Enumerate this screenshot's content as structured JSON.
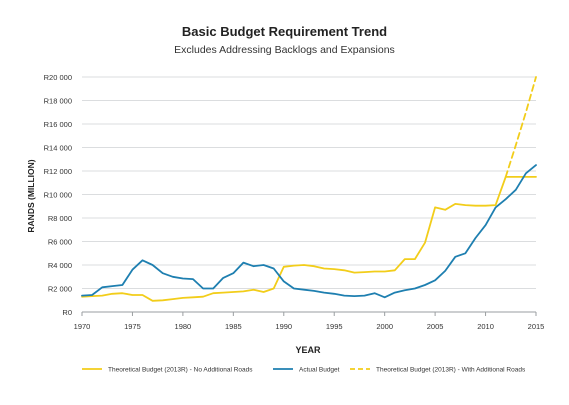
{
  "chart_data": {
    "type": "line",
    "title": "Basic Budget Requirement Trend",
    "subtitle": "Excludes Addressing Backlogs and Expansions",
    "xlabel": "YEAR",
    "ylabel": "RANDS (MILLION)",
    "xlim": [
      1970,
      2015
    ],
    "ylim": [
      0,
      20000
    ],
    "x_ticks": [
      "1970",
      "1975",
      "1980",
      "1985",
      "1990",
      "1995",
      "2000",
      "2005",
      "2010",
      "2015"
    ],
    "y_ticks": [
      "R0",
      "R2 000",
      "R4 000",
      "R6 000",
      "R8 000",
      "R10 000",
      "R12 000",
      "R14 000",
      "R16 000",
      "R18 000",
      "R20 000"
    ],
    "grid": "horizontal",
    "legend_position": "bottom",
    "series": [
      {
        "name": "Theoretical Budget (2013R) - No Additional Roads",
        "color": "#f2cd1a",
        "dash": "solid",
        "points": [
          [
            1970,
            1300
          ],
          [
            1971,
            1350
          ],
          [
            1972,
            1400
          ],
          [
            1973,
            1550
          ],
          [
            1974,
            1600
          ],
          [
            1975,
            1450
          ],
          [
            1976,
            1450
          ],
          [
            1977,
            950
          ],
          [
            1978,
            1000
          ],
          [
            1979,
            1100
          ],
          [
            1980,
            1200
          ],
          [
            1981,
            1250
          ],
          [
            1982,
            1300
          ],
          [
            1983,
            1600
          ],
          [
            1984,
            1650
          ],
          [
            1985,
            1700
          ],
          [
            1986,
            1750
          ],
          [
            1987,
            1900
          ],
          [
            1988,
            1700
          ],
          [
            1989,
            2000
          ],
          [
            1990,
            3850
          ],
          [
            1991,
            3950
          ],
          [
            1992,
            4000
          ],
          [
            1993,
            3900
          ],
          [
            1994,
            3700
          ],
          [
            1995,
            3650
          ],
          [
            1996,
            3550
          ],
          [
            1997,
            3350
          ],
          [
            1998,
            3400
          ],
          [
            1999,
            3450
          ],
          [
            2000,
            3450
          ],
          [
            2001,
            3550
          ],
          [
            2002,
            4500
          ],
          [
            2003,
            4500
          ],
          [
            2004,
            5900
          ],
          [
            2005,
            8900
          ],
          [
            2006,
            8700
          ],
          [
            2007,
            9200
          ],
          [
            2008,
            9100
          ],
          [
            2009,
            9050
          ],
          [
            2010,
            9050
          ],
          [
            2011,
            9100
          ],
          [
            2012,
            11500
          ],
          [
            2013,
            11500
          ],
          [
            2014,
            11500
          ],
          [
            2015,
            11500
          ]
        ]
      },
      {
        "name": "Actual Budget",
        "color": "#1e7fb0",
        "dash": "solid",
        "points": [
          [
            1970,
            1400
          ],
          [
            1971,
            1450
          ],
          [
            1972,
            2100
          ],
          [
            1973,
            2200
          ],
          [
            1974,
            2300
          ],
          [
            1975,
            3600
          ],
          [
            1976,
            4400
          ],
          [
            1977,
            4000
          ],
          [
            1978,
            3300
          ],
          [
            1979,
            3000
          ],
          [
            1980,
            2850
          ],
          [
            1981,
            2800
          ],
          [
            1982,
            2000
          ],
          [
            1983,
            2000
          ],
          [
            1984,
            2900
          ],
          [
            1985,
            3300
          ],
          [
            1986,
            4200
          ],
          [
            1987,
            3900
          ],
          [
            1988,
            4000
          ],
          [
            1989,
            3700
          ],
          [
            1990,
            2600
          ],
          [
            1991,
            2000
          ],
          [
            1992,
            1900
          ],
          [
            1993,
            1800
          ],
          [
            1994,
            1650
          ],
          [
            1995,
            1550
          ],
          [
            1996,
            1400
          ],
          [
            1997,
            1350
          ],
          [
            1998,
            1400
          ],
          [
            1999,
            1600
          ],
          [
            2000,
            1250
          ],
          [
            2001,
            1650
          ],
          [
            2002,
            1850
          ],
          [
            2003,
            2000
          ],
          [
            2004,
            2300
          ],
          [
            2005,
            2700
          ],
          [
            2006,
            3500
          ],
          [
            2007,
            4700
          ],
          [
            2008,
            5000
          ],
          [
            2009,
            6300
          ],
          [
            2010,
            7400
          ],
          [
            2011,
            8900
          ],
          [
            2012,
            9600
          ],
          [
            2013,
            10400
          ],
          [
            2014,
            11800
          ],
          [
            2015,
            12500
          ]
        ]
      },
      {
        "name": "Theoretical Budget (2013R) - With Additional Roads",
        "color": "#f2cd1a",
        "dash": "dashed",
        "points": [
          [
            2012,
            11500
          ],
          [
            2013,
            14200
          ],
          [
            2014,
            17000
          ],
          [
            2015,
            20000
          ]
        ]
      }
    ]
  }
}
